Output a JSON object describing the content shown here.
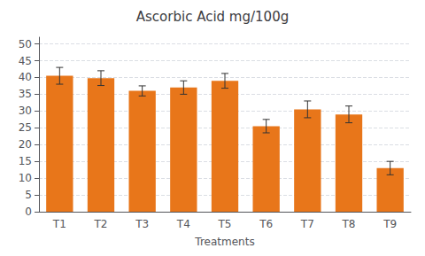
{
  "chart_data": {
    "type": "bar",
    "title": "Ascorbic Acid mg/100g",
    "xlabel": "Treatments",
    "categories": [
      "T1",
      "T2",
      "T3",
      "T4",
      "T5",
      "T6",
      "T7",
      "T8",
      "T9"
    ],
    "values": [
      40.5,
      39.8,
      36.0,
      37.0,
      39.0,
      25.5,
      30.5,
      29.0,
      13.0
    ],
    "errors": [
      2.5,
      2.2,
      1.5,
      2.0,
      2.2,
      2.0,
      2.5,
      2.5,
      2.0
    ],
    "color": "#E8761A",
    "ylim": [
      0,
      52
    ],
    "yticks": [
      0,
      5,
      10,
      15,
      20,
      25,
      30,
      35,
      40,
      45,
      50
    ],
    "grid": true
  }
}
